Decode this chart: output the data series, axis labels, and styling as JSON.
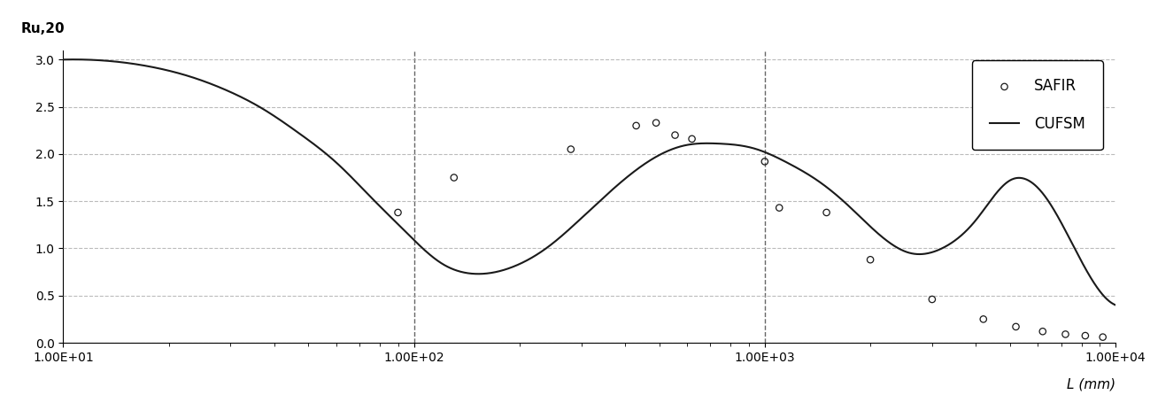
{
  "title": "Ru,20",
  "xlabel": "L (mm)",
  "xlim_log": [
    10,
    10000
  ],
  "ylim": [
    0,
    3.1
  ],
  "yticks": [
    0,
    0.5,
    1.0,
    1.5,
    2.0,
    2.5,
    3.0
  ],
  "xticks_log": [
    10,
    100,
    1000,
    10000
  ],
  "xtick_labels": [
    "1.00E+01",
    "1.00E+02",
    "1.00E+03",
    "1.00E+04"
  ],
  "vlines": [
    100,
    1000
  ],
  "background_color": "#ffffff",
  "grid_color": "#b0b0b0",
  "line_color": "#1a1a1a",
  "scatter_color": "#1a1a1a",
  "safir_x": [
    90,
    130,
    280,
    430,
    490,
    555,
    620,
    1000,
    1100,
    1500,
    2000,
    3000,
    4200,
    5200,
    6200,
    7200,
    8200,
    9200
  ],
  "safir_y": [
    1.38,
    1.75,
    2.05,
    2.3,
    2.33,
    2.2,
    2.16,
    1.92,
    1.43,
    1.38,
    0.88,
    0.46,
    0.25,
    0.17,
    0.12,
    0.09,
    0.075,
    0.06
  ],
  "cufsm_x": [
    10,
    14,
    18,
    23,
    29,
    37,
    47,
    60,
    75,
    95,
    120,
    150,
    190,
    240,
    300,
    375,
    470,
    590,
    740,
    930,
    1000,
    1170,
    1400,
    1700,
    2100,
    2600,
    3200,
    4000,
    5000,
    6300,
    7900,
    10000
  ],
  "cufsm_y": [
    3.0,
    2.98,
    2.92,
    2.82,
    2.68,
    2.48,
    2.22,
    1.91,
    1.55,
    1.17,
    0.84,
    0.73,
    0.8,
    1.01,
    1.32,
    1.65,
    1.93,
    2.09,
    2.11,
    2.06,
    2.02,
    1.9,
    1.73,
    1.48,
    1.16,
    0.95,
    1.0,
    1.3,
    1.72,
    1.55,
    0.9,
    0.4
  ],
  "legend_safir": "SAFIR",
  "legend_cufsm": "CUFSM",
  "tick_fontsize": 10,
  "legend_fontsize": 12
}
